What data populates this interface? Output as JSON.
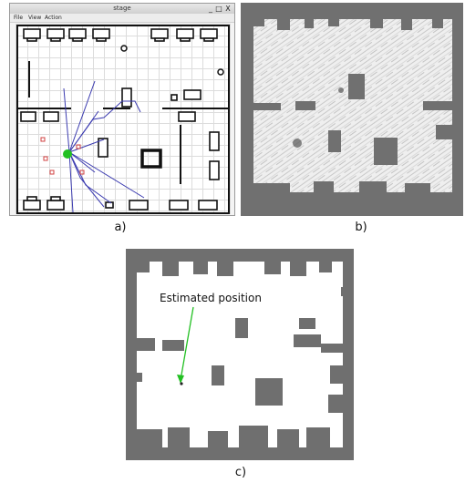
{
  "panel_a": {
    "window_title": "stage",
    "menu": [
      "File",
      "View",
      "Action"
    ],
    "window_controls": [
      "_",
      "□",
      "X"
    ]
  },
  "panel_c": {
    "annotation": "Estimated position"
  },
  "captions": [
    "a)",
    "b)",
    "c)"
  ],
  "colors": {
    "robot": "#22c022",
    "laser_rays": "#3b3bb0",
    "obstacle_markers": "#d04040",
    "map_occupied": "#6f6f6f",
    "annotation_arrow": "#22c022"
  }
}
